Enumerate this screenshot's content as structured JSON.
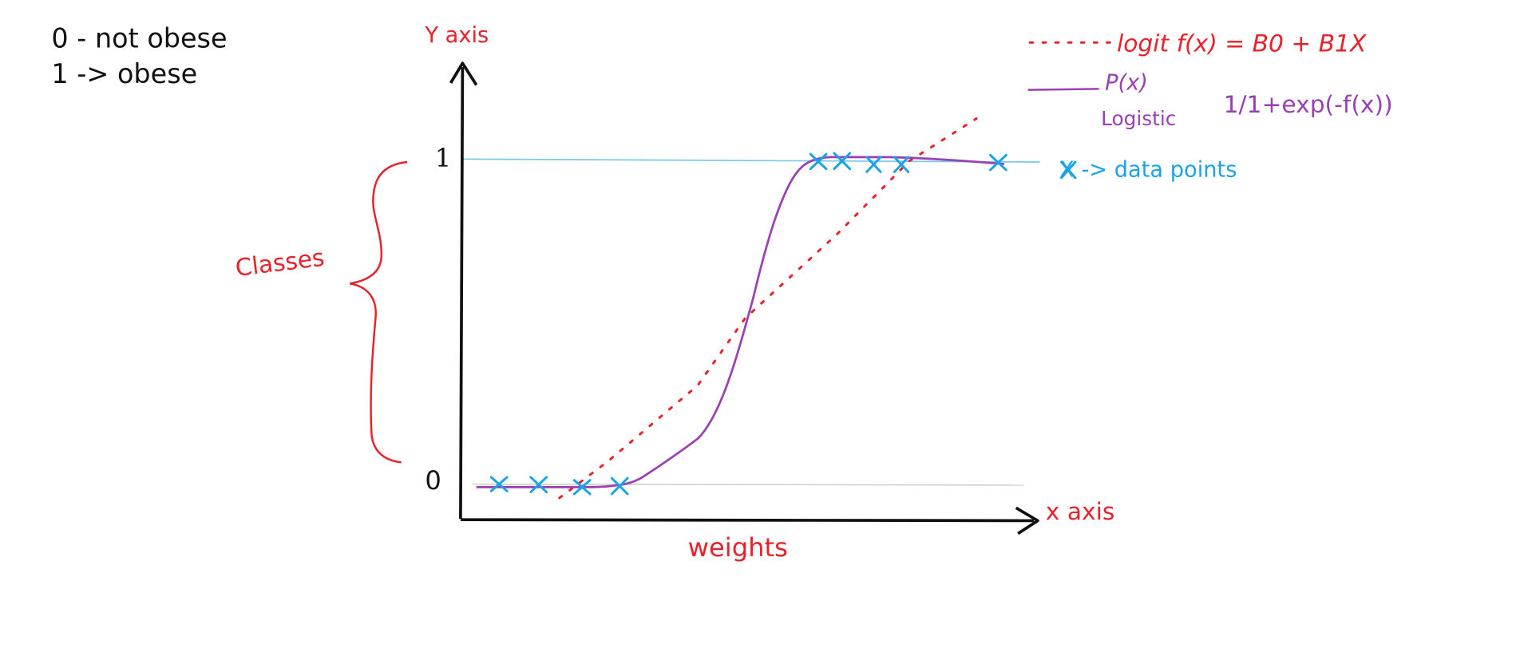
{
  "legend_classes": {
    "line0": "0 - not obese",
    "line1": "1 -> obese"
  },
  "axes": {
    "y_label": "Y axis",
    "x_label": "x axis",
    "x_caption": "weights",
    "tick_1": "1",
    "tick_0": "0"
  },
  "brace_label": "Classes",
  "legend": {
    "logit": "logit f(x) = B0 + B1X",
    "p_label": "P(x)",
    "logistic_label": "Logistic",
    "logistic_formula": "1/1+exp(-f(x))",
    "data_points": "X -> data points"
  },
  "colors": {
    "black": "#111111",
    "red": "#e8222a",
    "purple": "#9b3fb5",
    "blue": "#1aa3e8",
    "gridline_blue": "#7cc7ee",
    "gridline_gray": "#cccccc"
  }
}
